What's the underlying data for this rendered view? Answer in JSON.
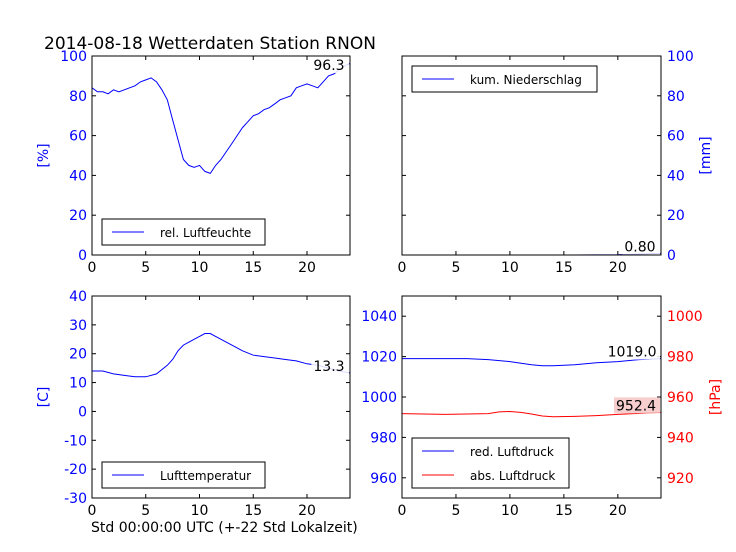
{
  "title": "2014-08-18 Wetterdaten Station RNON",
  "xlabel": "Std 00:00:00 UTC (+-22 Std Lokalzeit)",
  "colors": {
    "blue": "#0000ff",
    "red": "#ff0000",
    "black": "#000000",
    "valuebox_red_bg": "#f4c6c6"
  },
  "chart_data": [
    {
      "id": "humidity",
      "type": "line",
      "ylabel": "[%]",
      "xlim": [
        0,
        24
      ],
      "ylim": [
        0,
        100
      ],
      "xticks": [
        0,
        5,
        10,
        15,
        20
      ],
      "yticks": [
        0,
        20,
        40,
        60,
        80,
        100
      ],
      "legend": "bottom-left",
      "last_value_label": "96.3",
      "series": [
        {
          "name": "rel. Luftfeuchte",
          "color": "#0000ff",
          "x": [
            0,
            0.5,
            1,
            1.5,
            2,
            2.5,
            3,
            3.5,
            4,
            4.5,
            5,
            5.5,
            6,
            6.5,
            7,
            7.5,
            8,
            8.5,
            9,
            9.5,
            10,
            10.5,
            11,
            11.5,
            12,
            12.5,
            13,
            13.5,
            14,
            14.5,
            15,
            15.5,
            16,
            16.5,
            17,
            17.5,
            18,
            18.5,
            19,
            19.5,
            20,
            20.5,
            21,
            21.5,
            22,
            22.5,
            23,
            23.5,
            24
          ],
          "y": [
            84,
            82,
            82,
            81,
            83,
            82,
            83,
            84,
            85,
            87,
            88,
            89,
            87,
            83,
            78,
            68,
            58,
            48,
            45,
            44,
            45,
            42,
            41,
            45,
            48,
            52,
            56,
            60,
            64,
            67,
            70,
            71,
            73,
            74,
            76,
            78,
            79,
            80,
            84,
            85,
            86,
            85,
            84,
            87,
            90,
            91,
            93,
            95,
            96.3
          ]
        }
      ]
    },
    {
      "id": "precipitation",
      "type": "line",
      "ylabel": "[mm]",
      "xlim": [
        0,
        24
      ],
      "ylim": [
        0,
        100
      ],
      "xticks": [
        0,
        5,
        10,
        15,
        20
      ],
      "yticks": [
        0,
        20,
        40,
        60,
        80,
        100
      ],
      "yaxis_side": "right",
      "legend": "top-left",
      "last_value_label": "0.80",
      "series": [
        {
          "name": "kum. Niederschlag",
          "color": "#0000ff",
          "x": [
            0,
            4,
            8,
            12,
            16,
            20,
            21,
            22,
            23,
            24
          ],
          "y": [
            0,
            0,
            0,
            0,
            0,
            0.1,
            0.3,
            0.5,
            0.7,
            0.8
          ]
        }
      ]
    },
    {
      "id": "temperature",
      "type": "line",
      "ylabel": "[C]",
      "xlim": [
        0,
        24
      ],
      "ylim": [
        -30,
        40
      ],
      "xticks": [
        0,
        5,
        10,
        15,
        20
      ],
      "yticks": [
        -30,
        -20,
        -10,
        0,
        10,
        20,
        30,
        40
      ],
      "legend": "bottom-left",
      "last_value_label": "13.3",
      "series": [
        {
          "name": "Lufttemperatur",
          "color": "#0000ff",
          "x": [
            0,
            1,
            2,
            3,
            4,
            5,
            6,
            7,
            7.5,
            8,
            8.5,
            9,
            9.5,
            10,
            10.5,
            11,
            11.5,
            12,
            12.5,
            13,
            14,
            15,
            16,
            17,
            18,
            19,
            20,
            21,
            22,
            23,
            24
          ],
          "y": [
            14,
            14,
            13,
            12.5,
            12,
            12,
            13,
            16,
            18,
            21,
            23,
            24,
            25,
            26,
            27,
            27,
            26,
            25,
            24,
            23,
            21,
            19.5,
            19,
            18.5,
            18,
            17.5,
            16.5,
            16,
            15,
            14,
            13.3
          ]
        }
      ]
    },
    {
      "id": "pressure",
      "type": "line",
      "ylabel": "[hPa]",
      "xlim": [
        0,
        24
      ],
      "ylim": [
        950,
        1050
      ],
      "xticks": [
        0,
        5,
        10,
        15,
        20
      ],
      "yticks": [
        960,
        980,
        1000,
        1020,
        1040
      ],
      "yticks_right": [
        920,
        940,
        960,
        980,
        1000
      ],
      "ylim_right": [
        910,
        1010
      ],
      "legend": "bottom-left",
      "series": [
        {
          "name": "red. Luftdruck",
          "color": "#0000ff",
          "axis": "left",
          "last_value_label": "1019.0",
          "x": [
            0,
            2,
            4,
            6,
            8,
            10,
            12,
            13,
            14,
            16,
            18,
            20,
            22,
            24
          ],
          "y": [
            1019,
            1019,
            1019,
            1019,
            1018.5,
            1017.5,
            1016,
            1015.5,
            1015.5,
            1016,
            1017,
            1017.5,
            1018.5,
            1019
          ]
        },
        {
          "name": "abs. Luftdruck",
          "color": "#ff0000",
          "axis": "right",
          "last_value_label": "952.4",
          "x": [
            0,
            2,
            4,
            6,
            8,
            9,
            10,
            11,
            12,
            13,
            14,
            16,
            18,
            20,
            22,
            24
          ],
          "y": [
            951.8,
            951.6,
            951.4,
            951.6,
            951.8,
            952.6,
            952.8,
            952.4,
            951.6,
            950.6,
            950.2,
            950.4,
            950.8,
            951.4,
            951.9,
            952.4
          ]
        }
      ]
    }
  ]
}
